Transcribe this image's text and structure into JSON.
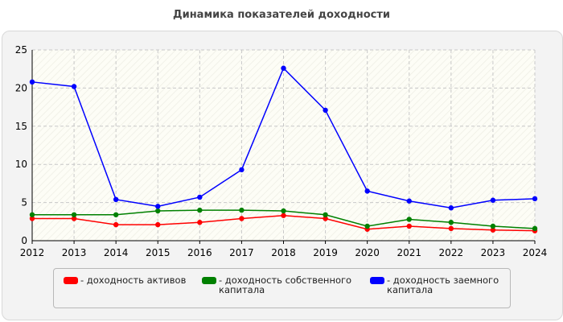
{
  "colors": {
    "assets": "#ff0000",
    "equity": "#008000",
    "debt": "#0000ff",
    "axis": "#000000",
    "grid": "#c8c8c8"
  },
  "chart_data": {
    "type": "line",
    "title": "Динамика показателей доходности",
    "xlabel": "",
    "ylabel": "",
    "x": [
      "2012",
      "2013",
      "2014",
      "2015",
      "2016",
      "2017",
      "2018",
      "2019",
      "2020",
      "2021",
      "2022",
      "2023",
      "2024"
    ],
    "ylim": [
      0,
      25
    ],
    "yticks": [
      "0",
      "5",
      "10",
      "15",
      "20",
      "25"
    ],
    "grid": true,
    "legend_position": "bottom",
    "series": [
      {
        "key": "assets",
        "name": "- доходность активов",
        "values": [
          2.9,
          2.9,
          2.1,
          2.1,
          2.4,
          2.9,
          3.3,
          2.9,
          1.5,
          1.9,
          1.6,
          1.4,
          1.3
        ]
      },
      {
        "key": "equity",
        "name": "- доходность собственного капитала",
        "values": [
          3.4,
          3.4,
          3.4,
          3.9,
          4.0,
          4.0,
          3.9,
          3.4,
          1.9,
          2.8,
          2.4,
          1.9,
          1.6
        ]
      },
      {
        "key": "debt",
        "name": "- доходность заемного капитала",
        "values": [
          20.8,
          20.2,
          5.4,
          4.5,
          5.7,
          9.3,
          22.6,
          17.1,
          6.5,
          5.2,
          4.3,
          5.3,
          5.5
        ]
      }
    ]
  }
}
